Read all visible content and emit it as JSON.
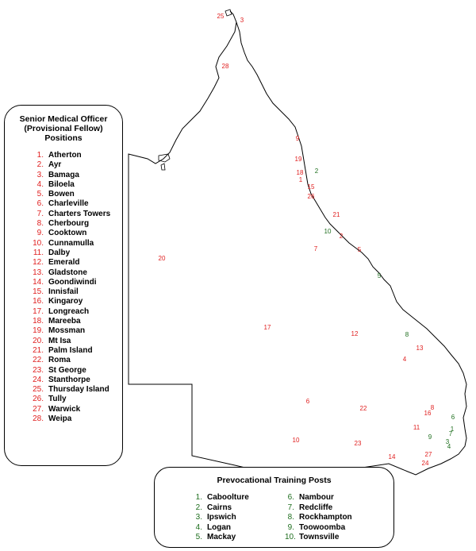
{
  "colors": {
    "smo": "#e02020",
    "training": "#1e6e1e",
    "coast": "#000000"
  },
  "smo_legend": {
    "title": "Senior Medical Officer (Provisional Fellow) Positions",
    "items": [
      {
        "n": "1.",
        "name": "Atherton"
      },
      {
        "n": "2.",
        "name": "Ayr"
      },
      {
        "n": "3.",
        "name": "Bamaga"
      },
      {
        "n": "4.",
        "name": "Biloela"
      },
      {
        "n": "5.",
        "name": "Bowen"
      },
      {
        "n": "6.",
        "name": "Charleville"
      },
      {
        "n": "7.",
        "name": "Charters Towers"
      },
      {
        "n": "8.",
        "name": "Cherbourg"
      },
      {
        "n": "9.",
        "name": "Cooktown"
      },
      {
        "n": "10.",
        "name": "Cunnamulla"
      },
      {
        "n": "11.",
        "name": "Dalby"
      },
      {
        "n": "12.",
        "name": "Emerald"
      },
      {
        "n": "13.",
        "name": "Gladstone"
      },
      {
        "n": "14.",
        "name": "Goondiwindi"
      },
      {
        "n": "15.",
        "name": "Innisfail"
      },
      {
        "n": "16.",
        "name": "Kingaroy"
      },
      {
        "n": "17.",
        "name": "Longreach"
      },
      {
        "n": "18.",
        "name": "Mareeba"
      },
      {
        "n": "19.",
        "name": "Mossman"
      },
      {
        "n": "20.",
        "name": "Mt Isa"
      },
      {
        "n": "21.",
        "name": "Palm Island"
      },
      {
        "n": "22.",
        "name": "Roma"
      },
      {
        "n": "23.",
        "name": "St George"
      },
      {
        "n": "24.",
        "name": "Stanthorpe"
      },
      {
        "n": "25.",
        "name": "Thursday Island"
      },
      {
        "n": "26.",
        "name": "Tully"
      },
      {
        "n": "27.",
        "name": "Warwick"
      },
      {
        "n": "28.",
        "name": "Weipa"
      }
    ]
  },
  "training_legend": {
    "title": "Prevocational Training Posts",
    "col1": [
      {
        "n": "1.",
        "name": "Caboolture"
      },
      {
        "n": "2.",
        "name": "Cairns"
      },
      {
        "n": "3.",
        "name": "Ipswich"
      },
      {
        "n": "4.",
        "name": "Logan"
      },
      {
        "n": "5.",
        "name": "Mackay"
      }
    ],
    "col2": [
      {
        "n": "6.",
        "name": "Nambour"
      },
      {
        "n": "7.",
        "name": "Redcliffe"
      },
      {
        "n": "8.",
        "name": "Rockhampton"
      },
      {
        "n": "9.",
        "name": "Toowoomba"
      },
      {
        "n": "10.",
        "name": "Townsville"
      }
    ]
  },
  "smo_markers": [
    {
      "label": "25",
      "name": "Thursday Island"
    },
    {
      "label": "3",
      "name": "Bamaga"
    },
    {
      "label": "28",
      "name": "Weipa"
    },
    {
      "label": "9",
      "name": "Cooktown"
    },
    {
      "label": "19",
      "name": "Mossman"
    },
    {
      "label": "18",
      "name": "Mareeba"
    },
    {
      "label": "1",
      "name": "Atherton"
    },
    {
      "label": "15",
      "name": "Innisfail"
    },
    {
      "label": "26",
      "name": "Tully"
    },
    {
      "label": "21",
      "name": "Palm Island"
    },
    {
      "label": "2",
      "name": "Ayr"
    },
    {
      "label": "7",
      "name": "Charters Towers"
    },
    {
      "label": "5",
      "name": "Bowen"
    },
    {
      "label": "20",
      "name": "Mt Isa"
    },
    {
      "label": "17",
      "name": "Longreach"
    },
    {
      "label": "12",
      "name": "Emerald"
    },
    {
      "label": "13",
      "name": "Gladstone"
    },
    {
      "label": "4",
      "name": "Biloela"
    },
    {
      "label": "6",
      "name": "Charleville"
    },
    {
      "label": "22",
      "name": "Roma"
    },
    {
      "label": "8",
      "name": "Cherbourg"
    },
    {
      "label": "16",
      "name": "Kingaroy"
    },
    {
      "label": "11",
      "name": "Dalby"
    },
    {
      "label": "10",
      "name": "Cunnamulla"
    },
    {
      "label": "23",
      "name": "St George"
    },
    {
      "label": "14",
      "name": "Goondiwindi"
    },
    {
      "label": "27",
      "name": "Warwick"
    },
    {
      "label": "24",
      "name": "Stanthorpe"
    }
  ],
  "training_markers": [
    {
      "label": "2",
      "name": "Cairns"
    },
    {
      "label": "10",
      "name": "Townsville"
    },
    {
      "label": "5",
      "name": "Mackay"
    },
    {
      "label": "8",
      "name": "Rockhampton"
    },
    {
      "label": "6",
      "name": "Nambour"
    },
    {
      "label": "1",
      "name": "Caboolture"
    },
    {
      "label": "7",
      "name": "Redcliffe"
    },
    {
      "label": "9",
      "name": "Toowoomba"
    },
    {
      "label": "3",
      "name": "Ipswich"
    },
    {
      "label": "4",
      "name": "Logan"
    }
  ]
}
